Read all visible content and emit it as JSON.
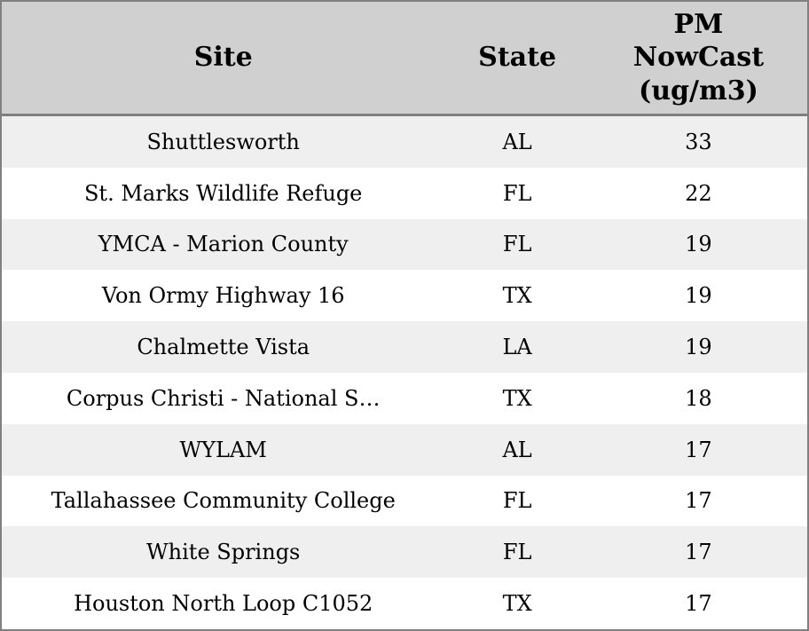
{
  "chart_data": {
    "type": "table",
    "columns": [
      "Site",
      "State",
      "PM NowCast (ug/m3)"
    ],
    "rows": [
      {
        "site": "Shuttlesworth",
        "state": "AL",
        "pm_nowcast": 33
      },
      {
        "site": "St. Marks Wildlife Refuge",
        "state": "FL",
        "pm_nowcast": 22
      },
      {
        "site": "YMCA - Marion County",
        "state": "FL",
        "pm_nowcast": 19
      },
      {
        "site": "Von Ormy Highway 16",
        "state": "TX",
        "pm_nowcast": 19
      },
      {
        "site": "Chalmette Vista",
        "state": "LA",
        "pm_nowcast": 19
      },
      {
        "site": "Corpus Christi - National S…",
        "state": "TX",
        "pm_nowcast": 18
      },
      {
        "site": "WYLAM",
        "state": "AL",
        "pm_nowcast": 17
      },
      {
        "site": "Tallahassee Community College",
        "state": "FL",
        "pm_nowcast": 17
      },
      {
        "site": "White Springs",
        "state": "FL",
        "pm_nowcast": 17
      },
      {
        "site": "Houston North Loop C1052",
        "state": "TX",
        "pm_nowcast": 17
      }
    ]
  },
  "colors": {
    "header_bg": "#d0d0d0",
    "row_odd_bg": "#efefef",
    "row_even_bg": "#ffffff",
    "border_color": "#808080",
    "text_color": "#000000"
  }
}
